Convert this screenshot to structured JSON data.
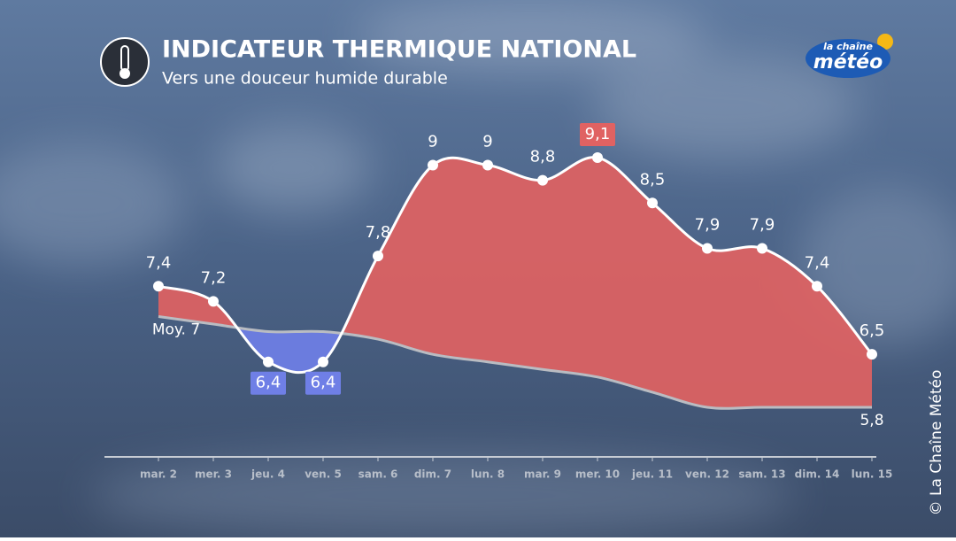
{
  "chart_data": {
    "type": "line",
    "title": "INDICATEUR THERMIQUE NATIONAL",
    "subtitle": "Vers une douceur humide durable",
    "categories": [
      "mar. 2",
      "mer. 3",
      "jeu. 4",
      "ven. 5",
      "sam. 6",
      "dim. 7",
      "lun. 8",
      "mar. 9",
      "mer. 10",
      "jeu. 11",
      "ven. 12",
      "sam. 13",
      "dim. 14",
      "lun. 15"
    ],
    "series": [
      {
        "color": "#ffffff",
        "values": [
          7.4,
          7.2,
          6.4,
          6.4,
          7.8,
          9,
          9,
          8.8,
          9.1,
          8.5,
          7.9,
          7.9,
          7.4,
          6.5
        ],
        "value_labels": [
          "7,4",
          "7,2",
          "6,4",
          "6,4",
          "7,8",
          "9",
          "9",
          "8,8",
          "9,1",
          "8,5",
          "7,9",
          "7,9",
          "7,4",
          "6,5"
        ]
      },
      {
        "color": "#b9bcc2",
        "values": [
          7,
          6.9,
          6.8,
          6.8,
          6.7,
          6.5,
          6.4,
          6.3,
          6.2,
          6.0,
          5.8,
          5.8,
          5.8,
          5.8
        ],
        "value_labels": [
          "Moy. 7",
          null,
          null,
          null,
          null,
          null,
          null,
          null,
          null,
          null,
          null,
          null,
          null,
          "5,8"
        ]
      }
    ],
    "above_color": "#e06262",
    "below_color": "#6f7fe6"
  },
  "logo": {
    "top": "la chaîne",
    "bottom": "météo"
  },
  "credit": "© La Chaîne Météo"
}
